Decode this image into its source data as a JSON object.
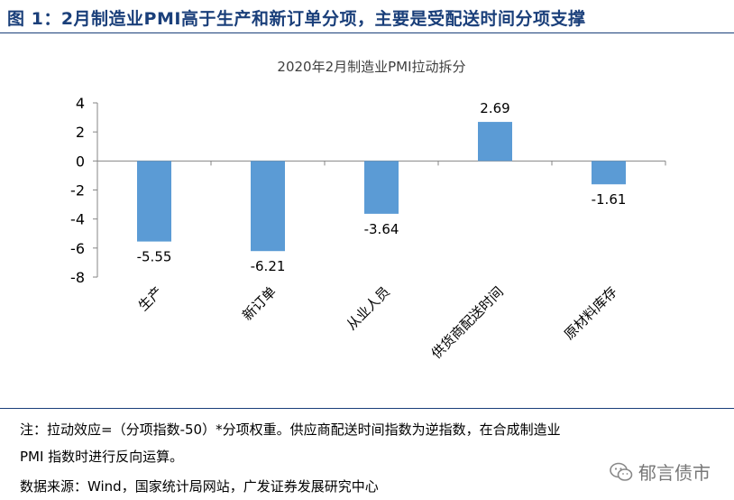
{
  "figure": {
    "title": "图 1：2月制造业PMI高于生产和新订单分项，主要是受配送时间分项支撑",
    "note_line1": "注：拉动效应=（分项指数-50）*分项权重。供应商配送时间指数为逆指数，在合成制造业",
    "note_line2": "PMI 指数时进行反向运算。",
    "source": "数据来源：Wind，国家统计局网站，广发证券发展研究中心",
    "watermark": "郁言债市",
    "watermark_icon": "wechat-icon"
  },
  "chart_data": {
    "type": "bar",
    "title": "2020年2月制造业PMI拉动拆分",
    "categories": [
      "生产",
      "新订单",
      "从业人员",
      "供货商配送时间",
      "原材料库存"
    ],
    "values": [
      -5.55,
      -6.21,
      -3.64,
      2.69,
      -1.61
    ],
    "value_labels": [
      "-5.55",
      "-6.21",
      "-3.64",
      "2.69",
      "-1.61"
    ],
    "yticks": [
      4,
      2,
      0,
      -2,
      -4,
      -6,
      -8
    ],
    "ylim": [
      -8,
      4
    ],
    "xlabel": "",
    "ylabel": "",
    "grid": false,
    "legend": "none",
    "bar_color": "#5b9bd5"
  }
}
